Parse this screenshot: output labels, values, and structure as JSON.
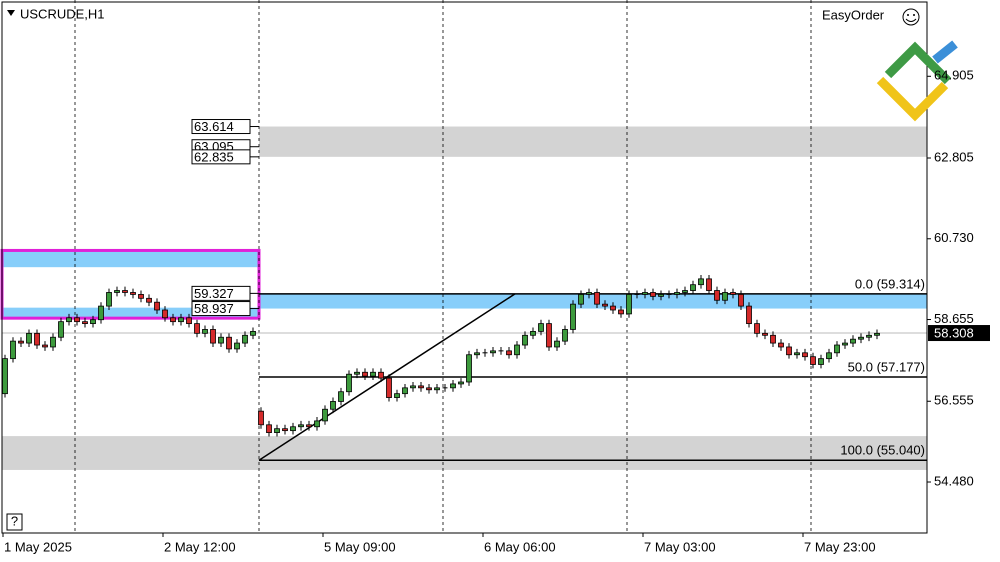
{
  "chart_data": {
    "type": "candlestick",
    "title": "USCRUDE,H1",
    "panel_label": "EasyOrder",
    "help_label": "?",
    "up_color": "#3c9a3c",
    "down_color": "#d42a2a",
    "ylim": [
      53.17,
      66.865
    ],
    "yticks": [
      64.905,
      62.805,
      {
        "value": 60.73,
        "label": "60.730"
      },
      58.655,
      56.555,
      {
        "value": 54.48,
        "label": "54.480"
      }
    ],
    "categories": [
      "1 May 2025",
      null,
      null,
      null,
      null,
      null,
      null,
      null,
      null,
      null,
      null,
      null,
      null,
      null,
      null,
      null,
      null,
      null,
      null,
      null,
      "2 May 12:00",
      null,
      null,
      null,
      null,
      null,
      null,
      null,
      null,
      null,
      null,
      null,
      null,
      null,
      null,
      null,
      null,
      null,
      null,
      null,
      "5 May 09:00",
      null,
      null,
      null,
      null,
      null,
      null,
      null,
      null,
      null,
      null,
      null,
      null,
      null,
      null,
      null,
      null,
      null,
      null,
      null,
      "6 May 06:00",
      null,
      null,
      null,
      null,
      null,
      null,
      null,
      null,
      null,
      null,
      null,
      null,
      null,
      null,
      null,
      null,
      null,
      null,
      null,
      "7 May 03:00",
      null,
      null,
      null,
      null,
      null,
      null,
      null,
      null,
      null,
      null,
      null,
      null,
      null,
      null,
      null,
      null,
      null,
      null,
      null,
      "7 May 23:00",
      null,
      null,
      null,
      null,
      null,
      null,
      null,
      null,
      null
    ],
    "open": [
      56.75,
      57.65,
      58.1,
      58.05,
      58.3,
      58.0,
      57.95,
      58.2,
      58.6,
      58.7,
      58.6,
      58.55,
      58.65,
      59.0,
      59.35,
      59.4,
      59.35,
      59.3,
      59.2,
      59.1,
      58.9,
      58.7,
      58.6,
      58.7,
      58.55,
      58.3,
      58.4,
      58.05,
      58.2,
      57.9,
      58.05,
      58.25,
      56.3,
      55.95,
      55.75,
      55.85,
      55.8,
      55.9,
      55.95,
      55.9,
      56.05,
      56.35,
      56.55,
      56.8,
      57.25,
      57.3,
      57.2,
      57.3,
      57.15,
      56.65,
      56.75,
      56.9,
      56.95,
      56.9,
      56.85,
      56.9,
      56.9,
      57.0,
      57.05,
      57.75,
      57.8,
      57.8,
      57.85,
      57.85,
      57.75,
      58.0,
      58.25,
      58.35,
      58.55,
      57.95,
      58.1,
      58.4,
      59.05,
      59.3,
      59.35,
      59.05,
      59.0,
      58.9,
      58.8,
      59.3,
      59.3,
      59.35,
      59.25,
      59.3,
      59.3,
      59.35,
      59.4,
      59.55,
      59.7,
      59.4,
      59.15,
      59.35,
      59.3,
      59.0,
      58.55,
      58.3,
      58.25,
      58.05,
      57.95,
      57.75,
      57.8,
      57.7,
      57.5,
      57.65,
      57.8,
      58.0,
      58.05,
      58.15,
      58.2,
      58.25
    ],
    "high": [
      57.75,
      58.2,
      58.2,
      58.4,
      58.4,
      58.1,
      58.3,
      58.7,
      58.8,
      58.8,
      58.7,
      58.75,
      59.1,
      59.45,
      59.5,
      59.5,
      59.45,
      59.4,
      59.3,
      59.2,
      59.0,
      58.8,
      58.8,
      58.8,
      58.65,
      58.5,
      58.5,
      58.3,
      58.3,
      58.15,
      58.35,
      58.45,
      56.4,
      56.05,
      55.95,
      55.95,
      56.0,
      56.05,
      56.05,
      56.15,
      56.45,
      56.65,
      56.9,
      57.35,
      57.4,
      57.4,
      57.4,
      57.4,
      57.25,
      56.85,
      57.0,
      57.05,
      57.05,
      57.0,
      57.0,
      57.0,
      57.1,
      57.15,
      57.85,
      57.9,
      57.9,
      57.95,
      57.95,
      57.95,
      58.1,
      58.35,
      58.45,
      58.65,
      58.65,
      58.2,
      58.5,
      59.15,
      59.4,
      59.45,
      59.45,
      59.15,
      59.1,
      59.0,
      59.4,
      59.4,
      59.45,
      59.45,
      59.4,
      59.4,
      59.45,
      59.5,
      59.65,
      59.8,
      59.8,
      59.5,
      59.45,
      59.45,
      59.4,
      59.1,
      58.65,
      58.4,
      58.35,
      58.15,
      58.05,
      57.9,
      57.9,
      57.8,
      57.75,
      57.9,
      58.1,
      58.15,
      58.25,
      58.3,
      58.35,
      58.4
    ],
    "low": [
      56.65,
      57.55,
      57.95,
      57.95,
      57.9,
      57.85,
      57.85,
      58.1,
      58.5,
      58.5,
      58.45,
      58.45,
      58.55,
      58.9,
      59.25,
      59.25,
      59.2,
      59.1,
      59.0,
      58.8,
      58.6,
      58.5,
      58.5,
      58.45,
      58.2,
      58.2,
      57.95,
      57.95,
      57.8,
      57.8,
      57.95,
      58.15,
      55.85,
      55.65,
      55.65,
      55.7,
      55.7,
      55.8,
      55.8,
      55.8,
      55.95,
      56.25,
      56.45,
      56.7,
      57.15,
      57.1,
      57.1,
      57.05,
      56.55,
      56.55,
      56.65,
      56.8,
      56.8,
      56.75,
      56.75,
      56.8,
      56.8,
      56.9,
      56.95,
      57.65,
      57.7,
      57.7,
      57.75,
      57.65,
      57.65,
      57.9,
      58.15,
      58.25,
      57.85,
      57.85,
      58.0,
      58.3,
      58.95,
      59.2,
      58.95,
      58.9,
      58.8,
      58.7,
      58.7,
      59.2,
      59.2,
      59.15,
      59.15,
      59.2,
      59.2,
      59.25,
      59.3,
      59.45,
      59.3,
      59.05,
      59.05,
      59.2,
      58.9,
      58.45,
      58.2,
      58.15,
      57.95,
      57.85,
      57.65,
      57.65,
      57.6,
      57.4,
      57.4,
      57.55,
      57.7,
      57.9,
      57.95,
      58.05,
      58.1,
      58.15
    ],
    "close": [
      57.65,
      58.1,
      58.05,
      58.3,
      58.0,
      57.95,
      58.2,
      58.6,
      58.7,
      58.6,
      58.55,
      58.65,
      59.0,
      59.35,
      59.4,
      59.35,
      59.3,
      59.2,
      59.1,
      58.9,
      58.7,
      58.6,
      58.7,
      58.55,
      58.3,
      58.4,
      58.05,
      58.2,
      57.9,
      58.05,
      58.25,
      58.35,
      55.95,
      55.75,
      55.85,
      55.8,
      55.9,
      55.95,
      55.9,
      56.05,
      56.35,
      56.55,
      56.8,
      57.25,
      57.3,
      57.2,
      57.3,
      57.15,
      56.65,
      56.75,
      56.9,
      56.95,
      56.9,
      56.85,
      56.9,
      56.9,
      57.0,
      57.05,
      57.75,
      57.8,
      57.8,
      57.85,
      57.85,
      57.75,
      58.0,
      58.25,
      58.35,
      58.55,
      57.95,
      58.1,
      58.4,
      59.05,
      59.3,
      59.35,
      59.05,
      59.0,
      58.9,
      58.8,
      59.3,
      59.3,
      59.35,
      59.25,
      59.3,
      59.3,
      59.35,
      59.4,
      59.55,
      59.7,
      59.4,
      59.15,
      59.35,
      59.3,
      59.0,
      58.55,
      58.3,
      58.25,
      58.05,
      57.95,
      57.75,
      57.8,
      57.7,
      57.5,
      57.65,
      57.8,
      58.0,
      58.05,
      58.15,
      58.2,
      58.25,
      58.3
    ],
    "zones": [
      {
        "from": 62.835,
        "to": 63.614,
        "color": "#d3d3d3",
        "span": "right",
        "style": "fill"
      },
      {
        "from": 54.79,
        "to": 55.66,
        "color": "#d3d3d3",
        "span": "full",
        "style": "fill"
      },
      {
        "from": 60.0,
        "to": 60.44,
        "color": "#87cefa",
        "span": "left",
        "style": "fill"
      },
      {
        "from": 58.69,
        "to": 58.96,
        "color": "#87cefa",
        "span": "left",
        "style": "fill"
      },
      {
        "from": 58.937,
        "to": 59.327,
        "color": "#87cefa",
        "span": "right",
        "style": "fill"
      },
      {
        "from": 58.69,
        "to": 60.43,
        "color": "#e020d8",
        "span": "left",
        "style": "outline"
      }
    ],
    "price_labels": [
      63.614,
      63.095,
      62.835,
      59.327,
      58.937
    ],
    "fib_levels": [
      {
        "label": "0.0 (59.314)",
        "value": 59.314
      },
      {
        "label": "50.0 (57.177)",
        "value": 57.177
      },
      {
        "label": "100.0 (55.040)",
        "value": 55.04
      }
    ],
    "last_price": 58.308,
    "grid": true
  }
}
